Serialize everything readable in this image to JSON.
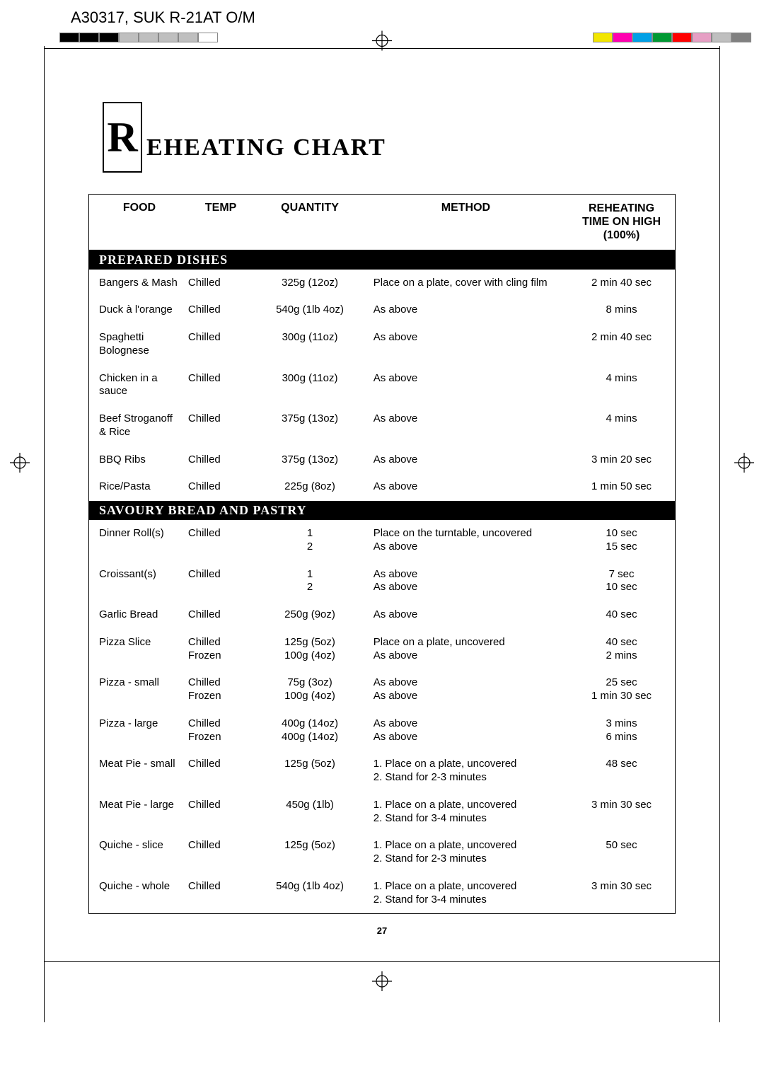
{
  "doc_id": "A30317, SUK R-21AT O/M",
  "page_number": "27",
  "title": {
    "drop_cap": "R",
    "rest": "EHEATING CHART"
  },
  "reg_marks": {
    "left_colors": [
      "#000000",
      "#000000",
      "#000000",
      "#bfbfbf",
      "#bfbfbf",
      "#bfbfbf",
      "#bfbfbf",
      "#ffffff"
    ],
    "right_colors": [
      "#f2e600",
      "#ff00b0",
      "#00a0e6",
      "#009933",
      "#ff0000",
      "#e69fc4",
      "#bfbfbf",
      "#808080"
    ]
  },
  "columns": {
    "food": "FOOD",
    "temp": "TEMP",
    "quantity": "QUANTITY",
    "method": "METHOD",
    "time": "REHEATING\nTIME ON\nHIGH (100%)"
  },
  "sections": [
    {
      "heading": "PREPARED DISHES",
      "rows": [
        {
          "food": "Bangers & Mash",
          "temp": "Chilled",
          "qty": "325g (12oz)",
          "method": "Place on a plate, cover with cling film",
          "time": "2 min 40 sec"
        },
        {
          "food": "Duck à l'orange",
          "temp": "Chilled",
          "qty": "540g (1lb 4oz)",
          "method": "As above",
          "time": "8 mins"
        },
        {
          "food": "Spaghetti Bolognese",
          "temp": "Chilled",
          "qty": "300g (11oz)",
          "method": "As above",
          "time": "2 min 40 sec"
        },
        {
          "food": "Chicken in a sauce",
          "temp": "Chilled",
          "qty": "300g (11oz)",
          "method": "As above",
          "time": "4 mins"
        },
        {
          "food": "Beef Stroganoff & Rice",
          "temp": "Chilled",
          "qty": "375g (13oz)",
          "method": "As above",
          "time": "4 mins"
        },
        {
          "food": "BBQ Ribs",
          "temp": "Chilled",
          "qty": "375g (13oz)",
          "method": "As above",
          "time": "3 min 20 sec"
        },
        {
          "food": "Rice/Pasta",
          "temp": "Chilled",
          "qty": "225g (8oz)",
          "method": "As above",
          "time": "1 min 50 sec"
        }
      ]
    },
    {
      "heading": "SAVOURY BREAD AND PASTRY",
      "rows": [
        {
          "food": "Dinner Roll(s)",
          "temp": "Chilled",
          "qty": "1\n2",
          "method": "Place on the turntable, uncovered\nAs above",
          "time": "10 sec\n15 sec"
        },
        {
          "food": "Croissant(s)",
          "temp": "Chilled",
          "qty": "1\n2",
          "method": "As above\nAs above",
          "time": "7 sec\n10 sec"
        },
        {
          "food": "Garlic Bread",
          "temp": "Chilled",
          "qty": "250g (9oz)",
          "method": "As above",
          "time": "40 sec"
        },
        {
          "food": "Pizza Slice",
          "temp": "Chilled\nFrozen",
          "qty": "125g (5oz)\n100g (4oz)",
          "method": "Place on a plate, uncovered\nAs above",
          "time": "40 sec\n2 mins"
        },
        {
          "food": "Pizza - small",
          "temp": "Chilled\nFrozen",
          "qty": "75g (3oz)\n100g (4oz)",
          "method": "As above\nAs above",
          "time": "25 sec\n1 min 30 sec"
        },
        {
          "food": "Pizza - large",
          "temp": "Chilled\nFrozen",
          "qty": "400g (14oz)\n400g (14oz)",
          "method": "As above\nAs above",
          "time": "3 mins\n6 mins"
        },
        {
          "food": "Meat Pie - small",
          "temp": "Chilled",
          "qty": "125g (5oz)",
          "method": "1. Place on a plate, uncovered\n2. Stand for 2-3 minutes",
          "time": "48 sec"
        },
        {
          "food": "Meat Pie - large",
          "temp": "Chilled",
          "qty": "450g (1lb)",
          "method": "1. Place on a plate, uncovered\n2. Stand for 3-4 minutes",
          "time": "3 min 30 sec"
        },
        {
          "food": "Quiche - slice",
          "temp": "Chilled",
          "qty": "125g (5oz)",
          "method": "1. Place on a plate, uncovered\n2. Stand for 2-3 minutes",
          "time": "50 sec"
        },
        {
          "food": "Quiche - whole",
          "temp": "Chilled",
          "qty": "540g (1lb 4oz)",
          "method": "1. Place on a plate, uncovered\n2. Stand for 3-4 minutes",
          "time": "3 min 30 sec"
        }
      ]
    }
  ]
}
